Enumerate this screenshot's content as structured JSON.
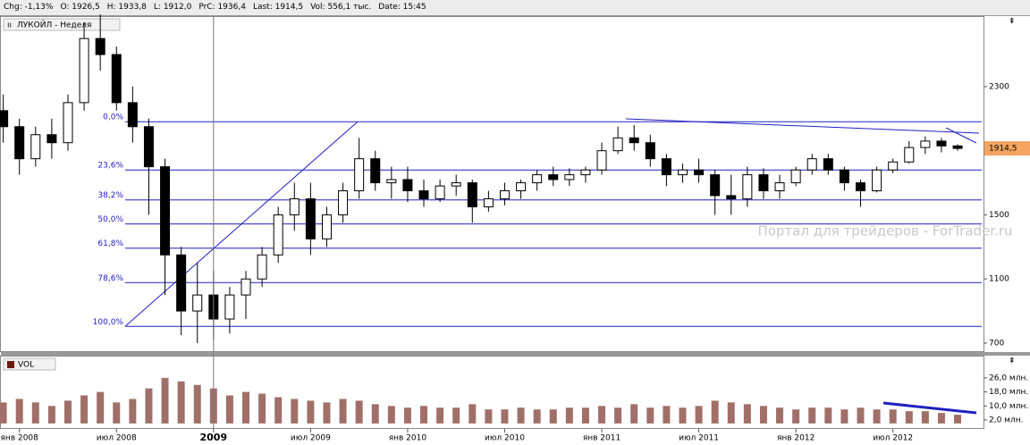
{
  "toolbar": {
    "items": [
      "Chg: -1,13%",
      "O: 1926,5",
      "H: 1933,8",
      "L: 1912,0",
      "PrC: 1936,4",
      "Last: 1914,5",
      "Vol: 556,1 тыс.",
      "Date: 15:45"
    ]
  },
  "watermark": "Портал для трейдеров - ForTrader.ru",
  "chart_data": [
    {
      "type": "candlestick",
      "legend": "ЛУКОЙЛ - Неделя",
      "up_color": "#ffffff",
      "down_color": "#000000",
      "x": [
        -1,
        0,
        1,
        2,
        3,
        4,
        5,
        6,
        7,
        8,
        9,
        10,
        11,
        12,
        13,
        14,
        15,
        16,
        17,
        18,
        19,
        20,
        21,
        22,
        23,
        24,
        25,
        26,
        27,
        28,
        29,
        30,
        31,
        32,
        33,
        34,
        35,
        36,
        37,
        38,
        39,
        40,
        41,
        42,
        43,
        44,
        45,
        46,
        47,
        48,
        49,
        50,
        51,
        52,
        53,
        54,
        55,
        56,
        57,
        58
      ],
      "open": [
        2150,
        2050,
        1850,
        2000,
        1950,
        2200,
        2600,
        2500,
        2200,
        2050,
        1800,
        1250,
        900,
        1000,
        850,
        1000,
        1100,
        1250,
        1500,
        1600,
        1350,
        1500,
        1650,
        1850,
        1700,
        1720,
        1650,
        1600,
        1680,
        1700,
        1550,
        1600,
        1650,
        1700,
        1750,
        1720,
        1750,
        1780,
        1900,
        1980,
        1950,
        1850,
        1750,
        1780,
        1750,
        1620,
        1600,
        1750,
        1650,
        1700,
        1780,
        1850,
        1780,
        1700,
        1650,
        1780,
        1830,
        1920,
        1960,
        1930
      ],
      "high": [
        2250,
        2100,
        2050,
        2100,
        2250,
        2700,
        2750,
        2550,
        2300,
        2100,
        1850,
        1300,
        1200,
        1150,
        1050,
        1150,
        1300,
        1550,
        1700,
        1700,
        1550,
        1700,
        1980,
        1900,
        1800,
        1800,
        1720,
        1720,
        1750,
        1720,
        1650,
        1700,
        1720,
        1780,
        1800,
        1790,
        1800,
        1950,
        2050,
        2060,
        2000,
        1880,
        1820,
        1850,
        1780,
        1750,
        1800,
        1790,
        1750,
        1800,
        1880,
        1880,
        1800,
        1720,
        1800,
        1850,
        1960,
        1990,
        1980,
        1940
      ],
      "low": [
        1950,
        1750,
        1800,
        1850,
        1900,
        2150,
        2400,
        2150,
        1950,
        1500,
        1000,
        750,
        700,
        720,
        760,
        850,
        1050,
        1200,
        1400,
        1250,
        1300,
        1450,
        1600,
        1650,
        1600,
        1580,
        1550,
        1580,
        1620,
        1450,
        1520,
        1560,
        1600,
        1650,
        1680,
        1680,
        1700,
        1750,
        1880,
        1900,
        1800,
        1680,
        1700,
        1700,
        1500,
        1500,
        1550,
        1600,
        1600,
        1680,
        1750,
        1750,
        1650,
        1550,
        1640,
        1760,
        1820,
        1880,
        1890,
        1900
      ],
      "close": [
        2050,
        1850,
        2000,
        1950,
        2200,
        2600,
        2500,
        2200,
        2050,
        1800,
        1250,
        900,
        1000,
        850,
        1000,
        1100,
        1250,
        1500,
        1600,
        1350,
        1500,
        1650,
        1850,
        1700,
        1720,
        1650,
        1600,
        1680,
        1700,
        1550,
        1600,
        1650,
        1700,
        1750,
        1720,
        1750,
        1780,
        1900,
        1980,
        1950,
        1850,
        1750,
        1780,
        1750,
        1620,
        1600,
        1750,
        1650,
        1700,
        1780,
        1850,
        1780,
        1700,
        1650,
        1780,
        1830,
        1920,
        1960,
        1930,
        1914.5
      ],
      "xlim": [
        -1.2,
        59.6
      ],
      "ylim": [
        655,
        2740
      ],
      "yticks": [
        700,
        1100,
        1500,
        2300
      ],
      "price_label": {
        "value": 1914.5,
        "label": "1914,5"
      },
      "fib_color": "#2020c0",
      "fib_levels": [
        {
          "value": 2081,
          "label": "0,0%"
        },
        {
          "value": 1780,
          "label": "23,6%"
        },
        {
          "value": 1593,
          "label": "38,2%"
        },
        {
          "value": 1443,
          "label": "50,0%"
        },
        {
          "value": 1292,
          "label": "61,8%"
        },
        {
          "value": 1077,
          "label": "78,6%"
        },
        {
          "value": 804,
          "label": "100,0%"
        }
      ]
    },
    {
      "type": "bar",
      "legend": "VOL",
      "color": "#a07068",
      "x": [
        -1,
        0,
        1,
        2,
        3,
        4,
        5,
        6,
        7,
        8,
        9,
        10,
        11,
        12,
        13,
        14,
        15,
        16,
        17,
        18,
        19,
        20,
        21,
        22,
        23,
        24,
        25,
        26,
        27,
        28,
        29,
        30,
        31,
        32,
        33,
        34,
        35,
        36,
        37,
        38,
        39,
        40,
        41,
        42,
        43,
        44,
        45,
        46,
        47,
        48,
        49,
        50,
        51,
        52,
        53,
        54,
        55,
        56,
        57,
        58
      ],
      "values": [
        12,
        14,
        12,
        10,
        13,
        16,
        18,
        12,
        14,
        20,
        26,
        24,
        22,
        20,
        16,
        18,
        17,
        15,
        14,
        13,
        12,
        14,
        13,
        11,
        10,
        9,
        10,
        9,
        9,
        11,
        8,
        8,
        9,
        8,
        8,
        9,
        9,
        10,
        9,
        11,
        9,
        10,
        9,
        10,
        13,
        12,
        11,
        10,
        9,
        8,
        9,
        9,
        8,
        9,
        8,
        8,
        7,
        7,
        6,
        5
      ],
      "xlim": [
        -1.2,
        59.6
      ],
      "ylim": [
        -2.1,
        37.7
      ],
      "yticks": [
        {
          "value": 26,
          "label": "26,0 млн."
        },
        {
          "value": 18,
          "label": "18,0 млн."
        },
        {
          "value": 10,
          "label": "10,0 млн."
        },
        {
          "value": 2,
          "label": "2,0 млн."
        }
      ],
      "xticks": [
        {
          "value": 0,
          "label": "янв 2008"
        },
        {
          "value": 6,
          "label": "июл 2008"
        },
        {
          "value": 12,
          "label": "2009"
        },
        {
          "value": 18,
          "label": "июл 2009"
        },
        {
          "value": 24,
          "label": "янв 2010"
        },
        {
          "value": 30,
          "label": "июл 2010"
        },
        {
          "value": 36,
          "label": "янв 2011"
        },
        {
          "value": 42,
          "label": "июл 2011"
        },
        {
          "value": 48,
          "label": "янв 2012"
        },
        {
          "value": 54,
          "label": "июл 2012"
        }
      ]
    }
  ]
}
